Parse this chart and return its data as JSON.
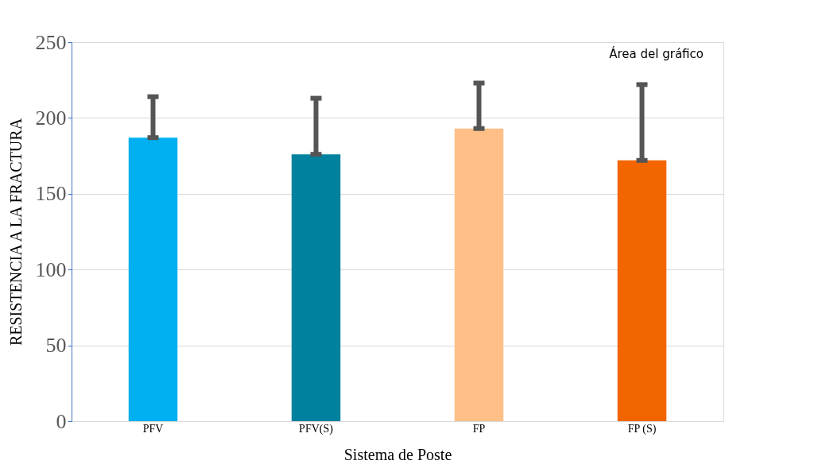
{
  "chart_data": {
    "type": "bar",
    "xlabel": "Sistema de Poste",
    "ylabel": "RESISTENCIA A LA FRACTURA",
    "categories": [
      "PFV",
      "PFV(S)",
      "FP",
      "FP (S)"
    ],
    "values": [
      187,
      176,
      193,
      172
    ],
    "colors": [
      "#00b0f0",
      "#00829e",
      "#ffbf87",
      "#f26500"
    ],
    "errors": [
      [
        187,
        214
      ],
      [
        176,
        213
      ],
      [
        193,
        223
      ],
      [
        172,
        222
      ]
    ],
    "ylim": [
      0,
      250
    ],
    "yticks": [
      0,
      50,
      100,
      150,
      200,
      250
    ],
    "grid": "y",
    "annotations": [
      "Área del gráfico"
    ]
  }
}
